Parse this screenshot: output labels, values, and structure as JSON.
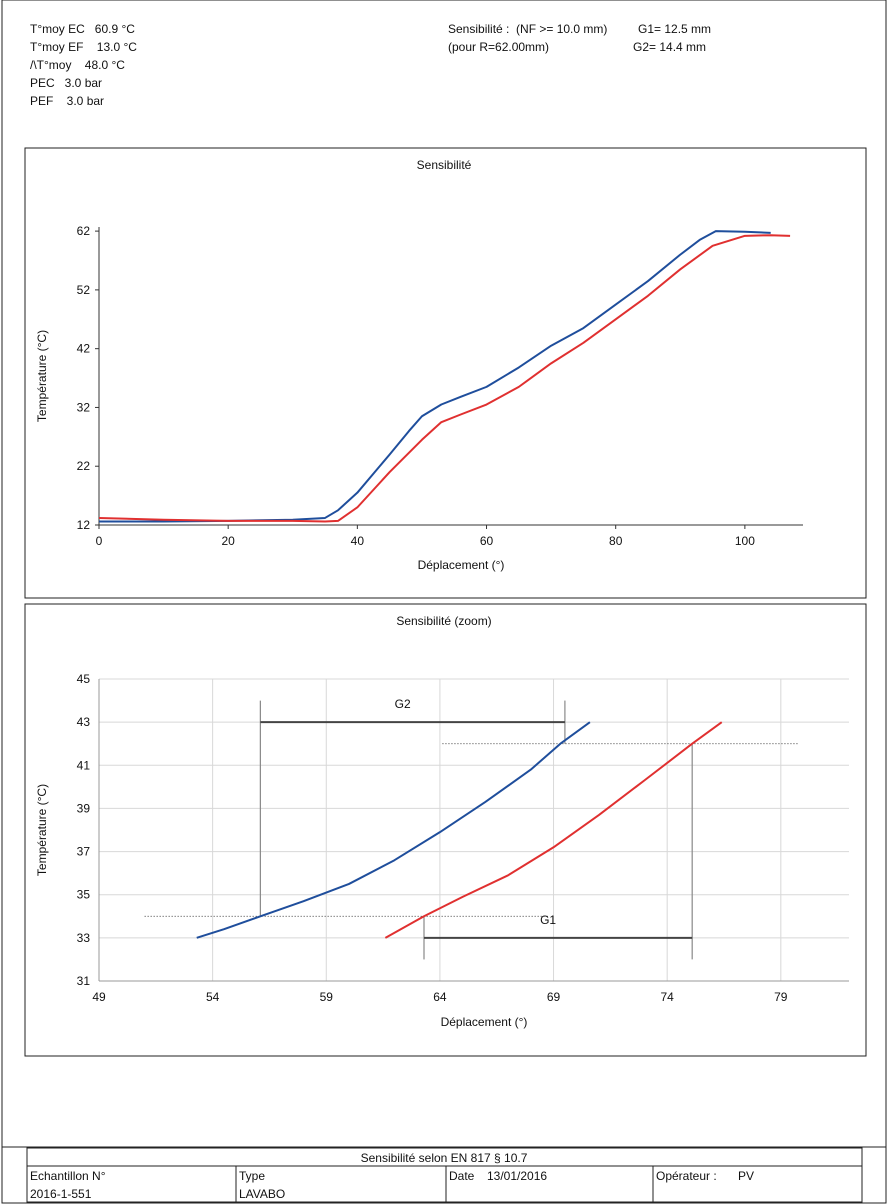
{
  "header": {
    "left": [
      "T°moy EC   60.9 °C",
      "T°moy EF    13.0 °C",
      "/\\T°moy    48.0 °C",
      "PEC   3.0 bar",
      "PEF    3.0 bar"
    ],
    "right": [
      "Sensibilité :  (NF >= 10.0 mm)",
      "G1= 12.5 mm",
      "(pour R=62.00mm)",
      "G2= 14.4 mm"
    ]
  },
  "chart_data": [
    {
      "type": "line",
      "title": "Sensibilité",
      "x_label": "Déplacement (°)",
      "y_label": "Température (°C)",
      "xlim": [
        0,
        109
      ],
      "ylim": [
        12,
        62.7
      ],
      "xticks": [
        0,
        20,
        40,
        60,
        80,
        100
      ],
      "yticks": [
        12,
        22,
        32,
        42,
        52,
        62
      ],
      "grid": false,
      "series": [
        {
          "color": "#1f4e9c",
          "x": [
            0,
            10,
            20,
            30,
            35,
            37,
            40,
            45,
            48,
            50,
            53,
            56,
            60,
            65,
            70,
            75,
            80,
            85,
            90,
            93,
            95.5,
            100,
            104
          ],
          "values": [
            12.6,
            12.6,
            12.7,
            12.9,
            13.2,
            14.5,
            17.5,
            24,
            28,
            30.5,
            32.5,
            33.8,
            35.5,
            38.8,
            42.5,
            45.5,
            49.5,
            53.5,
            58,
            60.5,
            62,
            61.9,
            61.7
          ]
        },
        {
          "color": "#e03030",
          "x": [
            0,
            10,
            20,
            30,
            35,
            37,
            40,
            45,
            50,
            53,
            56,
            60,
            65,
            70,
            75,
            80,
            85,
            90,
            95,
            100,
            104,
            107
          ],
          "values": [
            13.2,
            12.9,
            12.7,
            12.7,
            12.6,
            12.7,
            15,
            21,
            26.5,
            29.5,
            30.8,
            32.5,
            35.5,
            39.5,
            43,
            47,
            51,
            55.5,
            59.5,
            61.2,
            61.3,
            61.2
          ]
        }
      ]
    },
    {
      "type": "line",
      "title": "Sensibilité (zoom)",
      "x_label": "Déplacement (°)",
      "y_label": "Température (°C)",
      "xlim": [
        49,
        82
      ],
      "ylim": [
        31,
        45
      ],
      "xticks": [
        49,
        54,
        59,
        64,
        69,
        74,
        79
      ],
      "yticks": [
        31,
        33,
        35,
        37,
        39,
        41,
        43,
        45
      ],
      "grid": true,
      "series": [
        {
          "color": "#1f4e9c",
          "x": [
            53.3,
            54.5,
            56.1,
            58,
            60,
            62,
            64,
            66,
            68,
            69.3,
            70.6
          ],
          "values": [
            33,
            33.4,
            34,
            34.7,
            35.5,
            36.6,
            37.9,
            39.3,
            40.8,
            42,
            43
          ]
        },
        {
          "color": "#e03030",
          "x": [
            61.6,
            63.3,
            65,
            67,
            69,
            71,
            73,
            75.1,
            76.4
          ],
          "values": [
            33,
            34,
            34.9,
            35.9,
            37.2,
            38.7,
            40.3,
            42,
            43
          ]
        }
      ],
      "ref_lines": [
        {
          "y": 34,
          "x_range": [
            51,
            68.8
          ]
        },
        {
          "y": 42,
          "x_range": [
            64.1,
            79.8
          ]
        }
      ],
      "brackets": [
        {
          "label": "G2",
          "y": 43,
          "x_range": [
            56.1,
            69.5
          ]
        },
        {
          "label": "G1",
          "y": 33,
          "x_range": [
            63.3,
            75.1
          ]
        }
      ],
      "vlines": [
        {
          "x": 56.1,
          "y_range": [
            34,
            44
          ]
        },
        {
          "x": 69.5,
          "y_range": [
            42,
            44
          ]
        },
        {
          "x": 63.3,
          "y_range": [
            32,
            34
          ]
        },
        {
          "x": 75.1,
          "y_range": [
            32,
            42
          ]
        }
      ]
    }
  ],
  "footer": {
    "title": "Sensibilité selon EN 817 § 10.7",
    "cells": [
      {
        "label": "Echantillon N°",
        "value": "2016-1-551"
      },
      {
        "label": "Type",
        "value": "LAVABO"
      },
      {
        "label": "Date",
        "value": "13/01/2016"
      },
      {
        "label": "Opérateur :",
        "value": "PV"
      }
    ]
  }
}
